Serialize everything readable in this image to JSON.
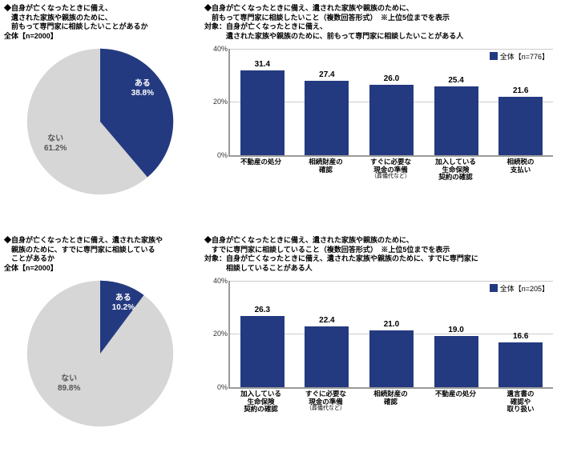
{
  "colors": {
    "primary": "#243a80",
    "secondary": "#d6d6d6",
    "grid": "#cccccc",
    "axis": "#9a9a9a"
  },
  "pie1": {
    "title": "◆自身が亡くなったときに備え、\n　遺された家族や親族のために、\n　前もって専門家に相談したいことがあるか\n全体【n=2000】",
    "yes_label": "ある",
    "yes_value": "38.8%",
    "no_label": "ない",
    "no_value": "61.2%",
    "yes_pct": 38.8
  },
  "pie2": {
    "title": "◆自身が亡くなったときに備え、遺された家族や\n　親族のために、すでに専門家に相談している\n　ことがあるか\n全体【n=2000】",
    "yes_label": "ある",
    "yes_value": "10.2%",
    "no_label": "ない",
    "no_value": "89.8%",
    "yes_pct": 10.2
  },
  "bar1": {
    "title": "◆自身が亡くなったときに備え、遺された家族や親族のために、\n　前もって専門家に相談したいこと（複数回答形式）　※上位5位までを表示\n対象：自身が亡くなったときに備え、\n　　　遺された家族や親族のために、前もって専門家に相談したいことがある人",
    "legend": "全体【n=776】",
    "ymax": 40,
    "ytick_step": 20,
    "categories": [
      "不動産の処分",
      "相続財産の\n確認",
      "すぐに必要な\n現金の準備",
      "加入している\n生命保険\n契約の確認",
      "相続税の\n支払い"
    ],
    "subcats": [
      "",
      "",
      "（葬儀代など）",
      "",
      ""
    ],
    "values": [
      31.4,
      27.4,
      26.0,
      25.4,
      21.6
    ]
  },
  "bar2": {
    "title": "◆自身が亡くなったときに備え、遺された家族や親族のために、\n　すでに専門家に相談していること（複数回答形式）　※上位5位までを表示\n対象：自身が亡くなったときに備え、遺された家族や親族のために、すでに専門家に\n　　　相談していることがある人",
    "legend": "全体【n=205】",
    "ymax": 40,
    "ytick_step": 20,
    "categories": [
      "加入している\n生命保険\n契約の確認",
      "すぐに必要な\n現金の準備",
      "相続財産の\n確認",
      "不動産の処分",
      "遺言書の\n確認や\n取り扱い"
    ],
    "subcats": [
      "",
      "（葬儀代など）",
      "",
      "",
      ""
    ],
    "values": [
      26.3,
      22.4,
      21.0,
      19.0,
      16.6
    ]
  }
}
